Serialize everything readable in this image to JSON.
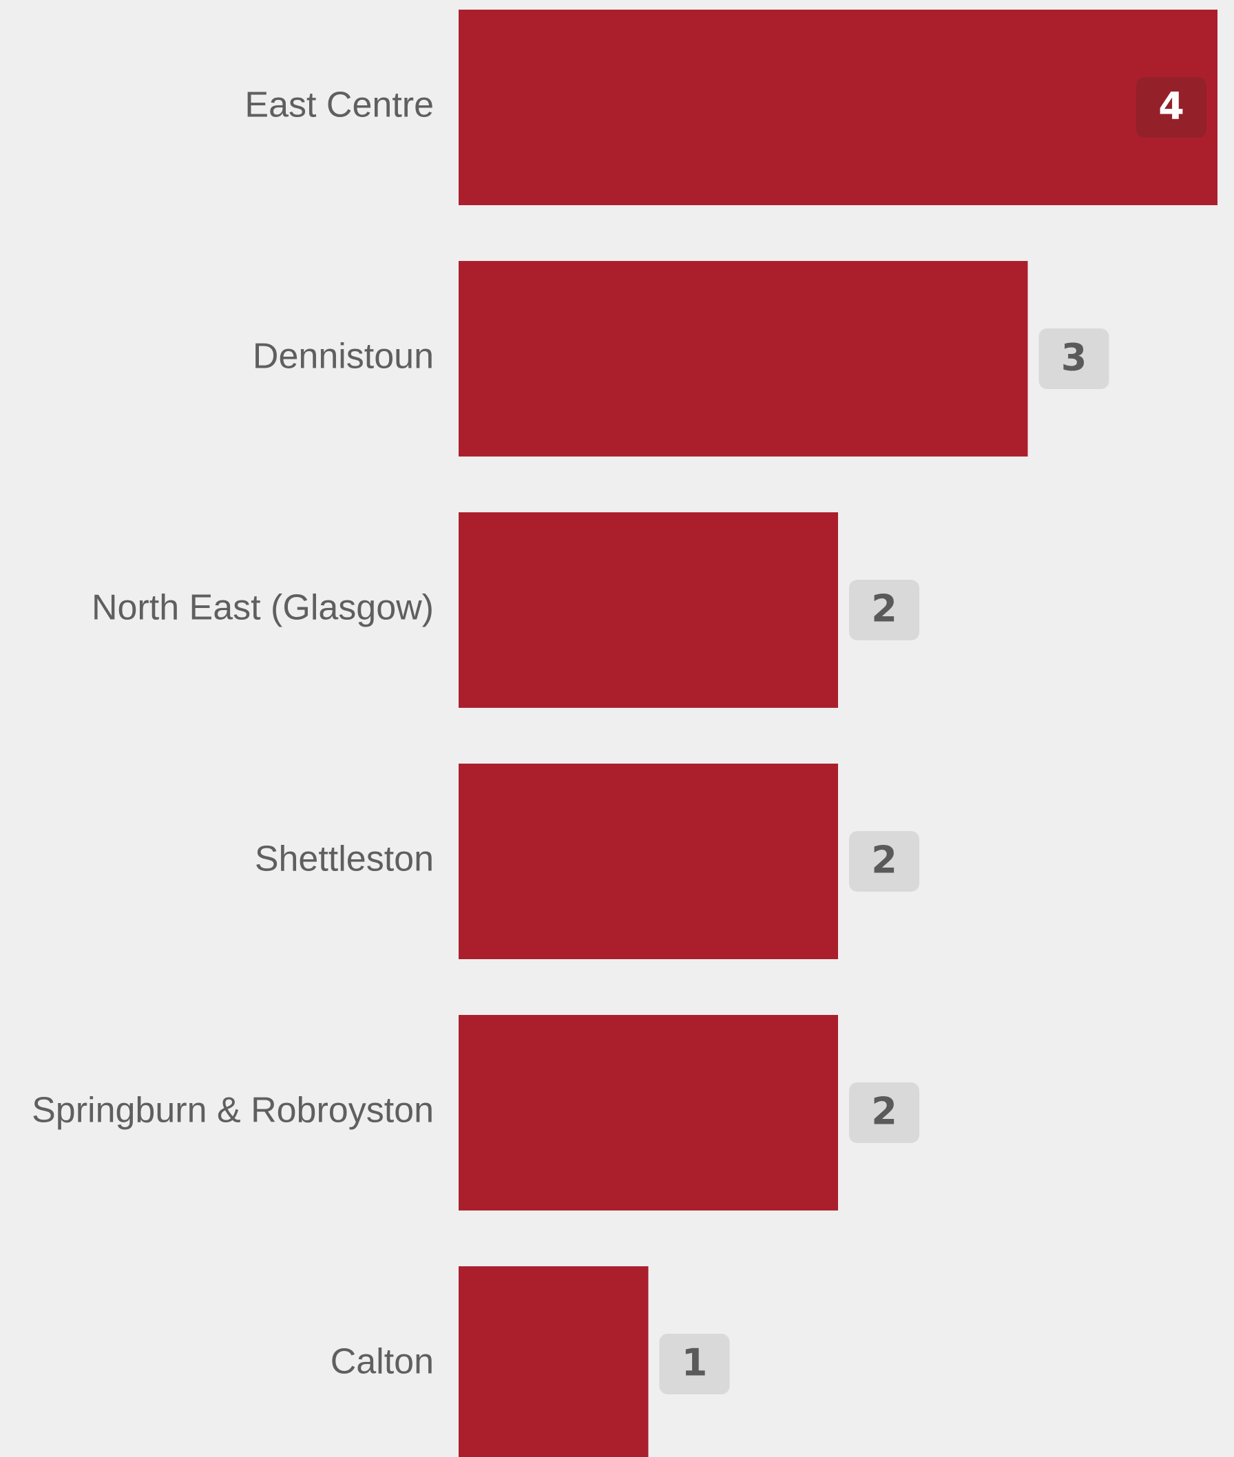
{
  "chart_data": {
    "type": "bar",
    "orientation": "horizontal",
    "categories": [
      "East Centre",
      "Dennistoun",
      "North East (Glasgow)",
      "Shettleston",
      "Springburn & Robroyston",
      "Calton"
    ],
    "values": [
      4,
      3,
      2,
      2,
      2,
      1
    ],
    "title": "",
    "xlabel": "",
    "ylabel": "",
    "xlim": [
      0,
      4
    ],
    "grid": false,
    "legend": "none",
    "colors": {
      "bar": "#ab1f2d",
      "background": "#efefef",
      "label_text": "#5f5f5f",
      "badge_outside": "#d9d9d9",
      "badge_outside_text": "#5a5a5a",
      "badge_inside": "#94202a",
      "badge_inside_text": "#ffffff"
    }
  }
}
